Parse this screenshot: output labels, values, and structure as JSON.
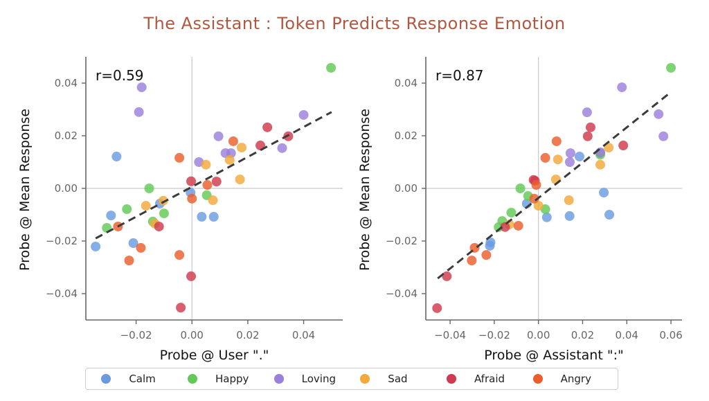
{
  "title": "The Assistant : Token Predicts Response Emotion",
  "colors": {
    "Calm": "#6a9be0",
    "Happy": "#62c956",
    "Loving": "#9b7fdc",
    "Sad": "#f2aa3c",
    "Afraid": "#cf3a4e",
    "Angry": "#eb5e2c",
    "fit_line": "#3b3b3b",
    "title": "#b0583f"
  },
  "legend": [
    {
      "label": "Calm"
    },
    {
      "label": "Happy"
    },
    {
      "label": "Loving"
    },
    {
      "label": "Sad"
    },
    {
      "label": "Afraid"
    },
    {
      "label": "Angry"
    }
  ],
  "chart_data": [
    {
      "type": "scatter",
      "title": "",
      "xlabel": "Probe @ User \".\"",
      "ylabel": "Probe @ Mean Response",
      "annotation": "r=0.59",
      "xlim": [
        -0.038,
        0.054
      ],
      "ylim": [
        -0.05,
        0.05
      ],
      "xticks": [
        -0.02,
        0.0,
        0.02,
        0.04
      ],
      "xtick_labels": [
        "−0.02",
        "0.00",
        "0.02",
        "0.04"
      ],
      "yticks": [
        -0.04,
        -0.02,
        0.0,
        0.02,
        0.04
      ],
      "ytick_labels": [
        "−0.04",
        "−0.02",
        "0.00",
        "0.02",
        "0.04"
      ],
      "zero_lines": true,
      "fit_line": {
        "x": [
          -0.0345,
          0.05
        ],
        "y": [
          -0.019,
          0.029
        ]
      },
      "points": [
        {
          "emotion": "Calm",
          "x": -0.0345,
          "y": -0.0221
        },
        {
          "emotion": "Calm",
          "x": -0.029,
          "y": -0.0103
        },
        {
          "emotion": "Calm",
          "x": -0.027,
          "y": 0.0121
        },
        {
          "emotion": "Calm",
          "x": -0.0115,
          "y": -0.0058
        },
        {
          "emotion": "Calm",
          "x": -0.021,
          "y": -0.0208
        },
        {
          "emotion": "Calm",
          "x": -0.0005,
          "y": -0.0016
        },
        {
          "emotion": "Calm",
          "x": 0.0035,
          "y": -0.0108
        },
        {
          "emotion": "Calm",
          "x": 0.0078,
          "y": -0.0108
        },
        {
          "emotion": "Happy",
          "x": -0.0233,
          "y": -0.0079
        },
        {
          "emotion": "Happy",
          "x": -0.0305,
          "y": -0.015
        },
        {
          "emotion": "Happy",
          "x": -0.01,
          "y": -0.0095
        },
        {
          "emotion": "Happy",
          "x": -0.014,
          "y": -0.0126
        },
        {
          "emotion": "Happy",
          "x": -0.0153,
          "y": 0.0
        },
        {
          "emotion": "Happy",
          "x": 0.0053,
          "y": -0.0026
        },
        {
          "emotion": "Happy",
          "x": 0.0498,
          "y": 0.0458
        },
        {
          "emotion": "Loving",
          "x": -0.018,
          "y": 0.0384
        },
        {
          "emotion": "Loving",
          "x": -0.019,
          "y": 0.029
        },
        {
          "emotion": "Loving",
          "x": 0.0025,
          "y": 0.01
        },
        {
          "emotion": "Loving",
          "x": 0.0095,
          "y": 0.0198
        },
        {
          "emotion": "Loving",
          "x": 0.012,
          "y": 0.0134
        },
        {
          "emotion": "Loving",
          "x": 0.014,
          "y": 0.0134
        },
        {
          "emotion": "Loving",
          "x": 0.0323,
          "y": 0.0153
        },
        {
          "emotion": "Loving",
          "x": 0.04,
          "y": 0.0279
        },
        {
          "emotion": "Sad",
          "x": -0.0165,
          "y": -0.0066
        },
        {
          "emotion": "Sad",
          "x": -0.0103,
          "y": -0.0047
        },
        {
          "emotion": "Sad",
          "x": -0.0133,
          "y": -0.0134
        },
        {
          "emotion": "Sad",
          "x": 0.005,
          "y": 0.009
        },
        {
          "emotion": "Sad",
          "x": 0.0075,
          "y": -0.0045
        },
        {
          "emotion": "Sad",
          "x": 0.0135,
          "y": 0.0108
        },
        {
          "emotion": "Sad",
          "x": 0.0172,
          "y": 0.0034
        },
        {
          "emotion": "Sad",
          "x": 0.0178,
          "y": 0.0155
        },
        {
          "emotion": "Afraid",
          "x": -0.0118,
          "y": -0.0145
        },
        {
          "emotion": "Afraid",
          "x": -0.0003,
          "y": 0.0027
        },
        {
          "emotion": "Afraid",
          "x": 0.0088,
          "y": 0.0026
        },
        {
          "emotion": "Afraid",
          "x": 0.0245,
          "y": 0.0163
        },
        {
          "emotion": "Afraid",
          "x": 0.027,
          "y": 0.0232
        },
        {
          "emotion": "Afraid",
          "x": 0.0345,
          "y": 0.0198
        },
        {
          "emotion": "Afraid",
          "x": -0.0003,
          "y": -0.0334
        },
        {
          "emotion": "Afraid",
          "x": -0.004,
          "y": -0.0453
        },
        {
          "emotion": "Angry",
          "x": -0.0265,
          "y": -0.0145
        },
        {
          "emotion": "Angry",
          "x": -0.0183,
          "y": -0.0226
        },
        {
          "emotion": "Angry",
          "x": -0.0225,
          "y": -0.0274
        },
        {
          "emotion": "Angry",
          "x": -0.0045,
          "y": -0.0253
        },
        {
          "emotion": "Angry",
          "x": -0.0045,
          "y": 0.0116
        },
        {
          "emotion": "Angry",
          "x": 0.0055,
          "y": 0.0013
        },
        {
          "emotion": "Angry",
          "x": 0.0,
          "y": -0.0039
        },
        {
          "emotion": "Angry",
          "x": 0.0148,
          "y": 0.0179
        }
      ]
    },
    {
      "type": "scatter",
      "title": "",
      "xlabel": "Probe @ Assistant \":\"",
      "ylabel": "Probe @ Mean Response",
      "annotation": "r=0.87",
      "xlim": [
        -0.051,
        0.065
      ],
      "ylim": [
        -0.05,
        0.05
      ],
      "xticks": [
        -0.04,
        -0.02,
        0.0,
        0.02,
        0.04,
        0.06
      ],
      "xtick_labels": [
        "−0.04",
        "−0.02",
        "0.00",
        "0.02",
        "0.04",
        "0.06"
      ],
      "yticks": [
        -0.04,
        -0.02,
        0.0,
        0.02,
        0.04
      ],
      "ytick_labels": [
        "−0.04",
        "−0.02",
        "0.00",
        "0.02",
        "0.04"
      ],
      "zero_lines": true,
      "fit_line": {
        "x": [
          -0.0456,
          0.06
        ],
        "y": [
          -0.0342,
          0.0366
        ]
      },
      "points": [
        {
          "emotion": "Calm",
          "x": -0.0217,
          "y": -0.0205
        },
        {
          "emotion": "Calm",
          "x": -0.022,
          "y": -0.0218
        },
        {
          "emotion": "Calm",
          "x": -0.0053,
          "y": -0.0058
        },
        {
          "emotion": "Calm",
          "x": 0.0038,
          "y": -0.011
        },
        {
          "emotion": "Calm",
          "x": 0.0141,
          "y": -0.0105
        },
        {
          "emotion": "Calm",
          "x": 0.0186,
          "y": 0.0121
        },
        {
          "emotion": "Calm",
          "x": 0.0321,
          "y": -0.01
        },
        {
          "emotion": "Calm",
          "x": 0.0296,
          "y": -0.0016
        },
        {
          "emotion": "Calm",
          "x": 0.028,
          "y": 0.0134
        },
        {
          "emotion": "Happy",
          "x": -0.0082,
          "y": 0.0
        },
        {
          "emotion": "Happy",
          "x": -0.0047,
          "y": -0.0029
        },
        {
          "emotion": "Happy",
          "x": 0.0031,
          "y": -0.0079
        },
        {
          "emotion": "Happy",
          "x": -0.0123,
          "y": -0.0092
        },
        {
          "emotion": "Happy",
          "x": -0.0164,
          "y": -0.0124
        },
        {
          "emotion": "Happy",
          "x": -0.018,
          "y": -0.0147
        },
        {
          "emotion": "Happy",
          "x": 0.028,
          "y": 0.0128
        },
        {
          "emotion": "Happy",
          "x": 0.06,
          "y": 0.0458
        },
        {
          "emotion": "Loving",
          "x": 0.022,
          "y": 0.0289
        },
        {
          "emotion": "Loving",
          "x": 0.0544,
          "y": 0.0282
        },
        {
          "emotion": "Loving",
          "x": 0.0566,
          "y": 0.0198
        },
        {
          "emotion": "Loving",
          "x": 0.0145,
          "y": 0.0134
        },
        {
          "emotion": "Loving",
          "x": 0.0142,
          "y": 0.01
        },
        {
          "emotion": "Loving",
          "x": 0.028,
          "y": 0.0137
        },
        {
          "emotion": "Loving",
          "x": 0.0378,
          "y": 0.0384
        },
        {
          "emotion": "Sad",
          "x": 0.0088,
          "y": 0.011
        },
        {
          "emotion": "Sad",
          "x": 0.0318,
          "y": 0.0155
        },
        {
          "emotion": "Sad",
          "x": 0.028,
          "y": 0.009
        },
        {
          "emotion": "Sad",
          "x": 0.0079,
          "y": 0.0034
        },
        {
          "emotion": "Sad",
          "x": 0.0,
          "y": -0.0066
        },
        {
          "emotion": "Sad",
          "x": 0.0138,
          "y": -0.0045
        },
        {
          "emotion": "Sad",
          "x": -0.0132,
          "y": -0.0137
        },
        {
          "emotion": "Afraid",
          "x": 0.0236,
          "y": 0.0232
        },
        {
          "emotion": "Afraid",
          "x": 0.0223,
          "y": 0.0198
        },
        {
          "emotion": "Afraid",
          "x": 0.0384,
          "y": 0.0163
        },
        {
          "emotion": "Afraid",
          "x": -0.0016,
          "y": 0.0029
        },
        {
          "emotion": "Afraid",
          "x": -0.0022,
          "y": 0.0032
        },
        {
          "emotion": "Afraid",
          "x": -0.0151,
          "y": -0.0147
        },
        {
          "emotion": "Afraid",
          "x": -0.0415,
          "y": -0.0334
        },
        {
          "emotion": "Afraid",
          "x": -0.0459,
          "y": -0.0455
        },
        {
          "emotion": "Angry",
          "x": 0.0082,
          "y": 0.0179
        },
        {
          "emotion": "Angry",
          "x": 0.0031,
          "y": 0.0116
        },
        {
          "emotion": "Angry",
          "x": -0.001,
          "y": 0.0013
        },
        {
          "emotion": "Angry",
          "x": -0.0019,
          "y": -0.0039
        },
        {
          "emotion": "Angry",
          "x": -0.0091,
          "y": -0.0142
        },
        {
          "emotion": "Angry",
          "x": -0.0289,
          "y": -0.0226
        },
        {
          "emotion": "Angry",
          "x": -0.0236,
          "y": -0.0253
        },
        {
          "emotion": "Angry",
          "x": -0.0302,
          "y": -0.0274
        }
      ]
    }
  ]
}
